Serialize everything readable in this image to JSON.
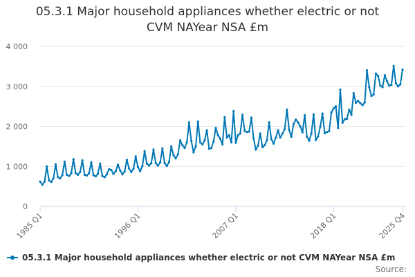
{
  "chart_data": {
    "type": "line",
    "title_line1": "05.3.1 Major household appliances whether electric or not",
    "title_line2": "CVM NAYear NSA £m",
    "xlabel": "",
    "ylabel": "",
    "ylim": [
      0,
      4000
    ],
    "yticks": [
      0,
      1000,
      2000,
      3000,
      4000
    ],
    "ytick_labels": [
      "0",
      "1 000",
      "2 000",
      "3 000",
      "4 000"
    ],
    "xtick_labels": [
      "1985 Q1",
      "1996 Q1",
      "2007 Q1",
      "2018 Q1",
      "2025 Q4"
    ],
    "xtick_indices": [
      0,
      44,
      88,
      132,
      163
    ],
    "grid": true,
    "legend_position": "bottom-left",
    "series": [
      {
        "name": "05.3.1 Major household appliances whether electric or not CVM NAYear NSA £m",
        "color": "#0077b4",
        "start": "1985 Q1",
        "values": [
          620,
          540,
          620,
          1000,
          650,
          610,
          700,
          1050,
          730,
          700,
          780,
          1120,
          790,
          760,
          830,
          1180,
          830,
          790,
          860,
          1150,
          790,
          770,
          830,
          1100,
          780,
          750,
          820,
          1070,
          760,
          730,
          800,
          930,
          910,
          810,
          880,
          1040,
          900,
          800,
          870,
          1160,
          950,
          860,
          940,
          1250,
          980,
          880,
          1010,
          1380,
          1070,
          1020,
          1080,
          1420,
          1080,
          1020,
          1100,
          1450,
          1080,
          1010,
          1110,
          1500,
          1280,
          1200,
          1300,
          1650,
          1530,
          1460,
          1600,
          2100,
          1640,
          1350,
          1500,
          2120,
          1600,
          1550,
          1650,
          1900,
          1440,
          1460,
          1620,
          1960,
          1780,
          1690,
          1550,
          2230,
          1720,
          1780,
          1600,
          2380,
          1590,
          1780,
          1820,
          2290,
          1890,
          1860,
          1870,
          2220,
          1700,
          1420,
          1520,
          1820,
          1480,
          1530,
          1650,
          2100,
          1680,
          1570,
          1720,
          1900,
          1720,
          1820,
          1930,
          2420,
          1910,
          1740,
          2060,
          2170,
          2100,
          2000,
          1850,
          2280,
          1740,
          1640,
          1820,
          2300,
          1660,
          1750,
          1990,
          2320,
          1830,
          1860,
          1880,
          2350,
          2450,
          2500,
          1960,
          2920,
          2090,
          2180,
          2190,
          2420,
          2290,
          2830,
          2590,
          2640,
          2580,
          2530,
          2600,
          3400,
          2980,
          2760,
          2800,
          3320,
          3260,
          3020,
          2980,
          3280,
          3130,
          3020,
          3040,
          3510,
          3080,
          3000,
          3050,
          3420
        ]
      }
    ]
  },
  "legend": {
    "label": "05.3.1 Major household appliances whether electric or not CVM NAYear NSA £m"
  },
  "footer": {
    "source": "Source:"
  }
}
